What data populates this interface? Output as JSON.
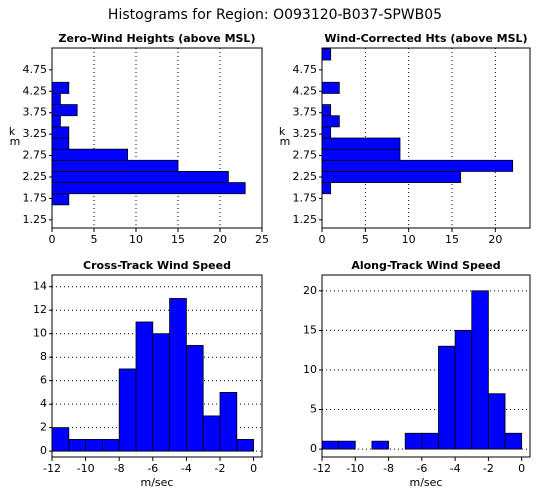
{
  "title": "Histograms for Region:  O093120-B037-SPWB05",
  "chart_data": [
    {
      "type": "histogram",
      "orientation": "horizontal",
      "title": "Zero-Wind Heights (above MSL)",
      "ylabel": "km",
      "bins": [
        1.6,
        1.86,
        2.12,
        2.38,
        2.64,
        2.9,
        3.16,
        3.42,
        3.68,
        3.94,
        4.2,
        4.46
      ],
      "values": [
        2,
        23,
        21,
        15,
        9,
        2,
        2,
        1,
        3,
        1,
        2
      ],
      "color": "#0000ff",
      "xlim": [
        0,
        25
      ],
      "xticks": [
        0,
        5,
        10,
        15,
        20,
        25
      ],
      "ylim": [
        1.06,
        5.26
      ],
      "yticks": [
        1.25,
        1.75,
        2.25,
        2.75,
        3.25,
        3.75,
        4.25,
        4.75
      ],
      "grid": true
    },
    {
      "type": "histogram",
      "orientation": "horizontal",
      "title": "Wind-Corrected Hts (above MSL)",
      "ylabel": "km",
      "bins": [
        1.6,
        1.86,
        2.12,
        2.38,
        2.64,
        2.9,
        3.16,
        3.42,
        3.68,
        3.94,
        4.2,
        4.46,
        4.72,
        4.98,
        5.24
      ],
      "values": [
        0,
        1,
        16,
        22,
        9,
        9,
        1,
        2,
        1,
        0,
        2,
        0,
        0,
        1
      ],
      "color": "#0000ff",
      "xlim": [
        0,
        24
      ],
      "xticks": [
        0,
        5,
        10,
        15,
        20
      ],
      "ylim": [
        1.06,
        5.26
      ],
      "yticks": [
        1.25,
        1.75,
        2.25,
        2.75,
        3.25,
        3.75,
        4.25,
        4.75
      ],
      "grid": true
    },
    {
      "type": "histogram",
      "orientation": "vertical",
      "title": "Cross-Track Wind Speed",
      "xlabel": "m/sec",
      "bins": [
        -12,
        -11,
        -10,
        -9,
        -8,
        -7,
        -6,
        -5,
        -4,
        -3,
        -2,
        -1,
        0
      ],
      "values": [
        2,
        1,
        1,
        1,
        7,
        11,
        10,
        13,
        9,
        3,
        5,
        1
      ],
      "color": "#0000ff",
      "xlim": [
        -12,
        0.5
      ],
      "xticks": [
        -12,
        -10,
        -8,
        -6,
        -4,
        -2,
        0
      ],
      "ylim": [
        -0.5,
        15
      ],
      "yticks": [
        0,
        2,
        4,
        6,
        8,
        10,
        12,
        14
      ],
      "grid": true
    },
    {
      "type": "histogram",
      "orientation": "vertical",
      "title": "Along-Track Wind Speed",
      "xlabel": "m/sec",
      "bins": [
        -12,
        -11,
        -10,
        -9,
        -8,
        -7,
        -6,
        -5,
        -4,
        -3,
        -2,
        -1,
        0
      ],
      "values": [
        1,
        1,
        0,
        1,
        0,
        2,
        2,
        13,
        15,
        20,
        7,
        2
      ],
      "color": "#0000ff",
      "xlim": [
        -12,
        0.5
      ],
      "xticks": [
        -12,
        -10,
        -8,
        -6,
        -4,
        -2,
        0
      ],
      "ylim": [
        -1,
        22
      ],
      "yticks": [
        0,
        5,
        10,
        15,
        20
      ],
      "grid": true
    }
  ]
}
